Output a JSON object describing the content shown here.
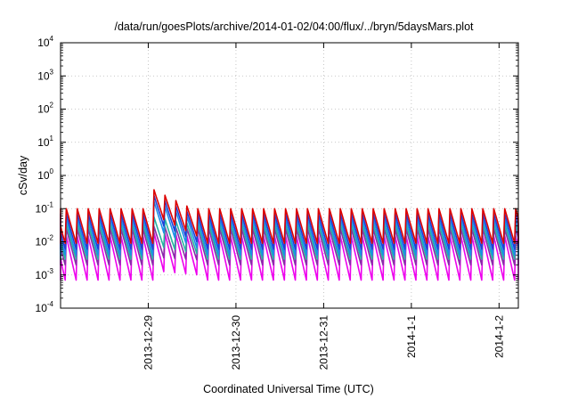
{
  "chart_data": {
    "type": "line",
    "title": "/data/run/goesPlots/archive/2014-01-02/04:00/flux/../bryn/5daysMars.plot",
    "xlabel": "Coordinated Universal Time (UTC)",
    "ylabel": "cSv/day",
    "yscale": "log",
    "ylim": [
      0.0001,
      10000
    ],
    "xlim_days_from_2013_12_28": [
      0,
      5.22
    ],
    "grid": true,
    "legend": "none",
    "x_ticks": [
      {
        "label": "2013-12-29",
        "value": "2013-12-29"
      },
      {
        "label": "2013-12-30",
        "value": "2013-12-30"
      },
      {
        "label": "2013-12-31",
        "value": "2013-12-31"
      },
      {
        "label": "2014-1-1",
        "value": "2014-01-01"
      },
      {
        "label": "2014-1-2",
        "value": "2014-01-02"
      }
    ],
    "y_ticks": [
      {
        "base": "10",
        "exp": "-4",
        "value": 0.0001
      },
      {
        "base": "10",
        "exp": "-3",
        "value": 0.001
      },
      {
        "base": "10",
        "exp": "-2",
        "value": 0.01
      },
      {
        "base": "10",
        "exp": "-1",
        "value": 0.1
      },
      {
        "base": "10",
        "exp": "0",
        "value": 1
      },
      {
        "base": "10",
        "exp": "1",
        "value": 10
      },
      {
        "base": "10",
        "exp": "2",
        "value": 100
      },
      {
        "base": "10",
        "exp": "3",
        "value": 1000
      },
      {
        "base": "10",
        "exp": "4",
        "value": 10000
      }
    ],
    "sawtooth_period_hours": 3,
    "flare_event": {
      "start": "2013-12-29T00:00",
      "end": "2013-12-29T12:00"
    },
    "series": [
      {
        "color": "#dd0000",
        "peak": 0.1,
        "trough": 0.009,
        "flare_peak": 0.45
      },
      {
        "color": "#1f3fd8",
        "peak": 0.07,
        "trough": 0.006,
        "flare_peak": 0.3
      },
      {
        "color": "#1a8fe8",
        "peak": 0.05,
        "trough": 0.004,
        "flare_peak": 0.2
      },
      {
        "color": "#28b4a0",
        "peak": 0.035,
        "trough": 0.003,
        "flare_peak": 0.06
      },
      {
        "color": "#8a2ba8",
        "peak": 0.025,
        "trough": 0.002,
        "flare_peak": 0.03
      },
      {
        "color": "#ee00ee",
        "peak": 0.015,
        "trough": 0.0007,
        "flare_peak": 0.02
      }
    ]
  }
}
